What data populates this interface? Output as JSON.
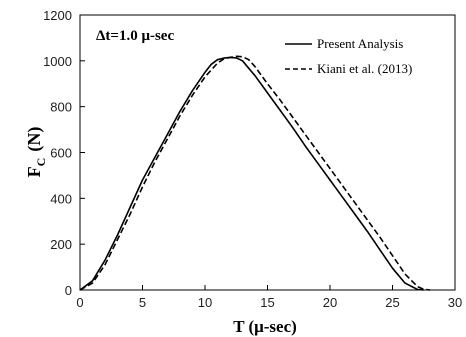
{
  "chart_data": {
    "type": "line",
    "annotation": "Δt=1.0 μ-sec",
    "xlabel": "T (μ-sec)",
    "ylabel": {
      "main": "F",
      "sub": "C",
      "rest": "(N)"
    },
    "xlim": [
      0,
      30
    ],
    "ylim": [
      0,
      1200
    ],
    "x_ticks": [
      0,
      5,
      10,
      15,
      20,
      25,
      30
    ],
    "y_ticks": [
      0,
      200,
      400,
      600,
      800,
      1000,
      1200
    ],
    "grid": false,
    "legend_position": "top-right",
    "series": [
      {
        "name": "Present Analysis",
        "style": "solid",
        "color": "#000000",
        "x": [
          0,
          1,
          2,
          3,
          4,
          5,
          6,
          7,
          8,
          9,
          10,
          10.5,
          11,
          11.5,
          12,
          12.5,
          13,
          14,
          15,
          16,
          17,
          18,
          19,
          20,
          21,
          22,
          23,
          24,
          25,
          26,
          27,
          27.5
        ],
        "y": [
          0,
          40,
          130,
          240,
          360,
          480,
          580,
          680,
          780,
          870,
          950,
          985,
          1005,
          1012,
          1015,
          1013,
          1000,
          935,
          860,
          785,
          710,
          630,
          555,
          480,
          405,
          330,
          255,
          175,
          95,
          30,
          2,
          0
        ]
      },
      {
        "name": "Kiani et al. (2013)",
        "style": "dashed",
        "color": "#000000",
        "x": [
          0,
          1,
          2,
          3,
          4,
          5,
          6,
          7,
          8,
          9,
          10,
          11,
          11.5,
          12,
          12.5,
          13,
          13.5,
          14,
          15,
          16,
          17,
          18,
          19,
          20,
          21,
          22,
          23,
          24,
          25,
          26,
          27,
          27.5,
          28
        ],
        "y": [
          0,
          30,
          110,
          220,
          330,
          450,
          560,
          660,
          760,
          850,
          930,
          990,
          1008,
          1015,
          1020,
          1018,
          1005,
          975,
          900,
          830,
          755,
          680,
          605,
          530,
          455,
          380,
          305,
          230,
          150,
          70,
          15,
          3,
          0
        ]
      }
    ]
  }
}
